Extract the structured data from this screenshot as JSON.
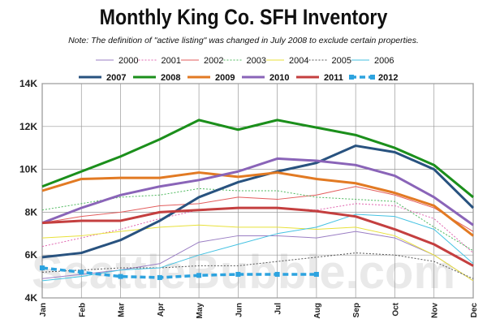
{
  "chart_data": {
    "type": "line",
    "title": "Monthly King Co. SFH Inventory",
    "note": "Note: The definition of \"active listing\" was changed in July 2008 to exclude certain properties.",
    "watermark": "SeattleBubble.com",
    "categories": [
      "Jan",
      "Feb",
      "Mar",
      "Apr",
      "May",
      "Jun",
      "Jul",
      "Aug",
      "Sep",
      "Oct",
      "Nov",
      "Dec"
    ],
    "y_ticks": [
      "4K",
      "6K",
      "8K",
      "10K",
      "12K",
      "14K"
    ],
    "ylim": [
      4000,
      14000
    ],
    "grid": true,
    "legend_position": "top",
    "series": [
      {
        "name": "2000",
        "color": "#9b7fc4",
        "style": "thin",
        "values": [
          4900,
          5100,
          5300,
          5600,
          6600,
          6900,
          6900,
          6800,
          7100,
          6800,
          6000,
          4800
        ]
      },
      {
        "name": "2001",
        "color": "#e066b0",
        "style": "dotted",
        "values": [
          6400,
          6800,
          7200,
          7700,
          8100,
          8200,
          8200,
          8100,
          8400,
          8300,
          7700,
          6100
        ]
      },
      {
        "name": "2002",
        "color": "#e35d5d",
        "style": "thin",
        "values": [
          7500,
          7800,
          8000,
          8300,
          8400,
          8700,
          8600,
          8800,
          9200,
          8800,
          8200,
          7100
        ]
      },
      {
        "name": "2003",
        "color": "#4db85d",
        "style": "dotted",
        "values": [
          8100,
          8400,
          8700,
          8800,
          9100,
          9000,
          9000,
          8700,
          8600,
          8500,
          7300,
          6200
        ]
      },
      {
        "name": "2004",
        "color": "#e8e13a",
        "style": "thin",
        "values": [
          6800,
          6900,
          7100,
          7300,
          7400,
          7300,
          7300,
          7200,
          7300,
          6900,
          6000,
          4800
        ]
      },
      {
        "name": "2005",
        "color": "#555555",
        "style": "dotted",
        "values": [
          5200,
          5300,
          5400,
          5400,
          5500,
          5500,
          5700,
          5900,
          6100,
          6000,
          5700,
          4900
        ]
      },
      {
        "name": "2006",
        "color": "#44c2e2",
        "style": "thin",
        "values": [
          4800,
          5000,
          5300,
          5400,
          6000,
          6500,
          7000,
          7300,
          7900,
          7800,
          7200,
          5600
        ]
      },
      {
        "name": "2007",
        "color": "#28527f",
        "style": "thick",
        "values": [
          5900,
          6100,
          6700,
          7600,
          8700,
          9400,
          9900,
          10300,
          11100,
          10800,
          10000,
          8200
        ]
      },
      {
        "name": "2008",
        "color": "#1b8f1b",
        "style": "thick",
        "values": [
          9200,
          9900,
          10600,
          11400,
          12300,
          11850,
          12300,
          11950,
          11600,
          11000,
          10200,
          8700
        ]
      },
      {
        "name": "2009",
        "color": "#e27a23",
        "style": "thick",
        "values": [
          9000,
          9550,
          9600,
          9600,
          9850,
          9650,
          9850,
          9550,
          9350,
          8900,
          8300,
          6900
        ]
      },
      {
        "name": "2010",
        "color": "#8a64b8",
        "style": "thick",
        "values": [
          7500,
          8200,
          8800,
          9200,
          9500,
          9900,
          10500,
          10400,
          10200,
          9700,
          8700,
          7400
        ]
      },
      {
        "name": "2011",
        "color": "#c43f3f",
        "style": "thick",
        "values": [
          7500,
          7600,
          7600,
          8000,
          8100,
          8200,
          8200,
          8050,
          7800,
          7200,
          6500,
          5500
        ]
      },
      {
        "name": "2012",
        "color": "#2da3df",
        "style": "dash-marker",
        "values": [
          5400,
          5200,
          5000,
          4950,
          5050,
          5100,
          5100,
          5100,
          null,
          null,
          null,
          null
        ]
      }
    ]
  }
}
